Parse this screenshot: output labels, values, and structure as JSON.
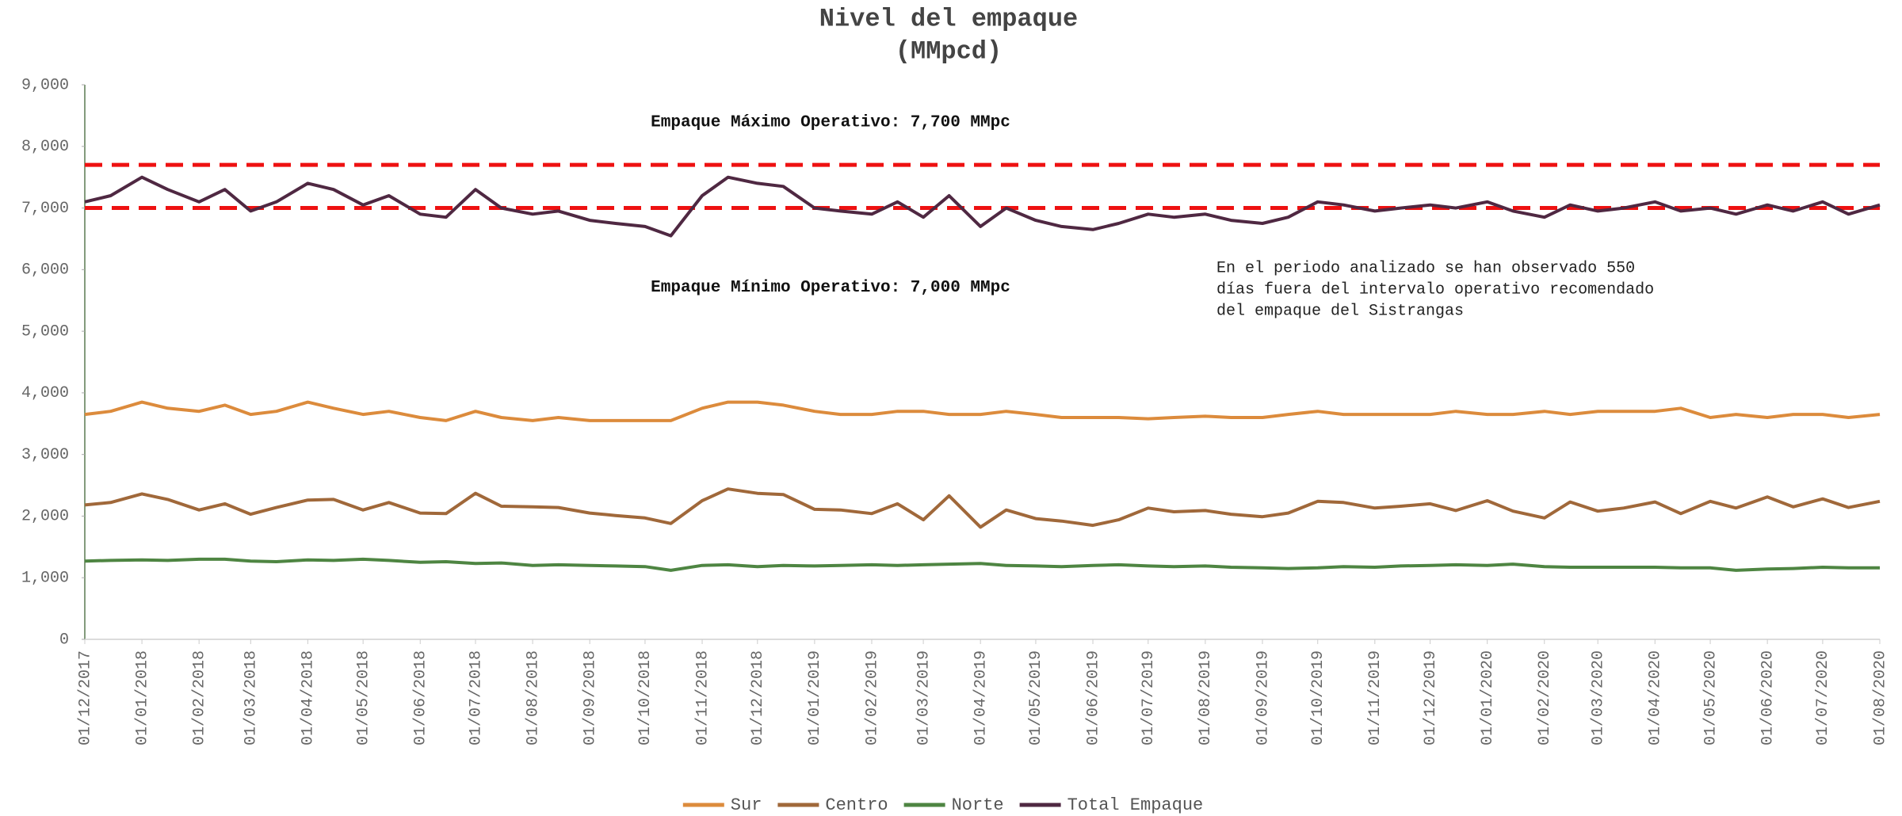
{
  "chart_data": {
    "type": "line",
    "title": "Nivel del empaque",
    "subtitle": "(MMpcd)",
    "x": [
      "01/12/2017",
      "15/12/2017",
      "01/01/2018",
      "15/01/2018",
      "01/02/2018",
      "15/02/2018",
      "01/03/2018",
      "15/03/2018",
      "01/04/2018",
      "15/04/2018",
      "01/05/2018",
      "15/05/2018",
      "01/06/2018",
      "15/06/2018",
      "01/07/2018",
      "15/07/2018",
      "01/08/2018",
      "15/08/2018",
      "01/09/2018",
      "15/09/2018",
      "01/10/2018",
      "15/10/2018",
      "01/11/2018",
      "15/11/2018",
      "01/12/2018",
      "15/12/2018",
      "01/01/2019",
      "15/01/2019",
      "01/02/2019",
      "15/02/2019",
      "01/03/2019",
      "15/03/2019",
      "01/04/2019",
      "15/04/2019",
      "01/05/2019",
      "15/05/2019",
      "01/06/2019",
      "15/06/2019",
      "01/07/2019",
      "15/07/2019",
      "01/08/2019",
      "15/08/2019",
      "01/09/2019",
      "15/09/2019",
      "01/10/2019",
      "15/10/2019",
      "01/11/2019",
      "15/11/2019",
      "01/12/2019",
      "15/12/2019",
      "01/01/2020",
      "15/01/2020",
      "01/02/2020",
      "15/02/2020",
      "01/03/2020",
      "15/03/2020",
      "01/04/2020",
      "15/04/2020",
      "01/05/2020",
      "15/05/2020",
      "01/06/2020",
      "15/06/2020",
      "01/07/2020",
      "15/07/2020",
      "01/08/2020"
    ],
    "series": [
      {
        "name": "Sur",
        "color": "#dc8b3c",
        "values": [
          3650,
          3700,
          3850,
          3750,
          3700,
          3800,
          3650,
          3700,
          3850,
          3750,
          3650,
          3700,
          3600,
          3550,
          3700,
          3600,
          3550,
          3600,
          3550,
          3550,
          3550,
          3550,
          3750,
          3850,
          3850,
          3800,
          3700,
          3650,
          3650,
          3700,
          3700,
          3650,
          3650,
          3700,
          3650,
          3600,
          3600,
          3600,
          3580,
          3600,
          3620,
          3600,
          3600,
          3650,
          3700,
          3650,
          3650,
          3650,
          3650,
          3700,
          3650,
          3650,
          3700,
          3650,
          3700,
          3700,
          3700,
          3750,
          3600,
          3650,
          3600,
          3650,
          3650,
          3600,
          3650
        ]
      },
      {
        "name": "Centro",
        "color": "#a0683a",
        "values": [
          2180,
          2220,
          2360,
          2270,
          2100,
          2200,
          2030,
          2140,
          2260,
          2270,
          2100,
          2220,
          2050,
          2040,
          2370,
          2160,
          2150,
          2140,
          2050,
          2010,
          1970,
          1880,
          2250,
          2440,
          2370,
          2350,
          2110,
          2100,
          2040,
          2200,
          1940,
          2330,
          1820,
          2100,
          1960,
          1920,
          1850,
          1940,
          2130,
          2070,
          2090,
          2030,
          1990,
          2050,
          2240,
          2220,
          2130,
          2160,
          2200,
          2090,
          2250,
          2080,
          1970,
          2230,
          2080,
          2130,
          2230,
          2040,
          2240,
          2130,
          2310,
          2150,
          2280,
          2140,
          2240
        ]
      },
      {
        "name": "Norte",
        "color": "#4e8542",
        "values": [
          1270,
          1280,
          1290,
          1280,
          1300,
          1300,
          1270,
          1260,
          1290,
          1280,
          1300,
          1280,
          1250,
          1260,
          1230,
          1240,
          1200,
          1210,
          1200,
          1190,
          1180,
          1120,
          1200,
          1210,
          1180,
          1200,
          1190,
          1200,
          1210,
          1200,
          1210,
          1220,
          1230,
          1200,
          1190,
          1180,
          1200,
          1210,
          1190,
          1180,
          1190,
          1170,
          1160,
          1150,
          1160,
          1180,
          1170,
          1190,
          1200,
          1210,
          1200,
          1220,
          1180,
          1170,
          1170,
          1170,
          1170,
          1160,
          1160,
          1120,
          1140,
          1150,
          1170,
          1160,
          1160
        ]
      },
      {
        "name": "Total Empaque",
        "color": "#4f2842",
        "values": [
          7100,
          7200,
          7500,
          7300,
          7100,
          7300,
          6950,
          7100,
          7400,
          7300,
          7050,
          7200,
          6900,
          6850,
          7300,
          7000,
          6900,
          6950,
          6800,
          6750,
          6700,
          6550,
          7200,
          7500,
          7400,
          7350,
          7000,
          6950,
          6900,
          7100,
          6850,
          7200,
          6700,
          7000,
          6800,
          6700,
          6650,
          6750,
          6900,
          6850,
          6900,
          6800,
          6750,
          6850,
          7100,
          7050,
          6950,
          7000,
          7050,
          7000,
          7100,
          6950,
          6850,
          7050,
          6950,
          7000,
          7100,
          6950,
          7000,
          6900,
          7050,
          6950,
          7100,
          6900,
          7050
        ]
      }
    ],
    "xlim": [
      "01/12/2017",
      "01/08/2020"
    ],
    "xticks": [
      "01/12/2017",
      "01/01/2018",
      "01/02/2018",
      "01/03/2018",
      "01/04/2018",
      "01/05/2018",
      "01/06/2018",
      "01/07/2018",
      "01/08/2018",
      "01/09/2018",
      "01/10/2018",
      "01/11/2018",
      "01/12/2018",
      "01/01/2019",
      "01/02/2019",
      "01/03/2019",
      "01/04/2019",
      "01/05/2019",
      "01/06/2019",
      "01/07/2019",
      "01/08/2019",
      "01/09/2019",
      "01/10/2019",
      "01/11/2019",
      "01/12/2019",
      "01/01/2020",
      "01/02/2020",
      "01/03/2020",
      "01/04/2020",
      "01/05/2020",
      "01/06/2020",
      "01/07/2020",
      "01/08/2020"
    ],
    "ylim": [
      0,
      9000
    ],
    "yticks": [
      0,
      {
        "value": 1000,
        "label": "1,000"
      },
      {
        "value": 2000,
        "label": "2,000"
      },
      {
        "value": 3000,
        "label": "3,000"
      },
      {
        "value": 4000,
        "label": "4,000"
      },
      {
        "value": 5000,
        "label": "5,000"
      },
      {
        "value": 6000,
        "label": "6,000"
      },
      {
        "value": 7000,
        "label": "7,000"
      },
      {
        "value": 8000,
        "label": "8,000"
      },
      {
        "value": 9000,
        "label": "9,000"
      }
    ],
    "reference_lines": [
      {
        "value": 7700,
        "label": "Empaque Máximo Operativo: 7,700 MMpc",
        "color": "#ee1111"
      },
      {
        "value": 7000,
        "label": "Empaque Mínimo Operativo: 7,000 MMpc",
        "color": "#ee1111"
      }
    ],
    "note": [
      "En el periodo analizado se han observado 550",
      "días fuera del intervalo operativo recomendado",
      "del empaque del Sistrangas"
    ],
    "legend": "bottom"
  }
}
